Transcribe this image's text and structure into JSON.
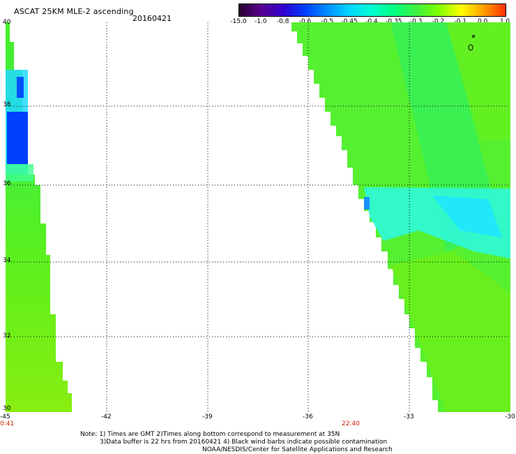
{
  "header": {
    "title": "ASCAT 25KM MLE-2 ascending",
    "date": "20160421"
  },
  "colorbar": {
    "labels": [
      "-15.0",
      "-1.0",
      "-0.8",
      "-0.6",
      "-0.5",
      "-0.45",
      "-0.4",
      "-0.35",
      "-0.3",
      "-0.2",
      "-0.1",
      "0.0",
      "1.0"
    ],
    "colors": [
      "#2a0030",
      "#5a0090",
      "#3000d0",
      "#0040ff",
      "#0090ff",
      "#00d8ff",
      "#00ffd0",
      "#00ff80",
      "#40f040",
      "#80ff00",
      "#ffff00",
      "#ffa000",
      "#ff3000"
    ]
  },
  "map": {
    "lat_labels": [
      "40",
      "38",
      "36",
      "34",
      "32",
      "30"
    ],
    "lon_labels": [
      "-45",
      "-42",
      "-39",
      "-36",
      "-33",
      "-30"
    ],
    "time_labels": [
      "0:41",
      "22:40"
    ]
  },
  "note": {
    "line1": "Note: 1) Times are GMT 2)Times along bottom correspond to measurement at 35N",
    "line2": "3)Data buffer is 22 hrs from 20160421 4) Black wind barbs indicate possible contamination",
    "line3": "NOAA/NESDIS/Center for Satellite Applications and Research"
  }
}
